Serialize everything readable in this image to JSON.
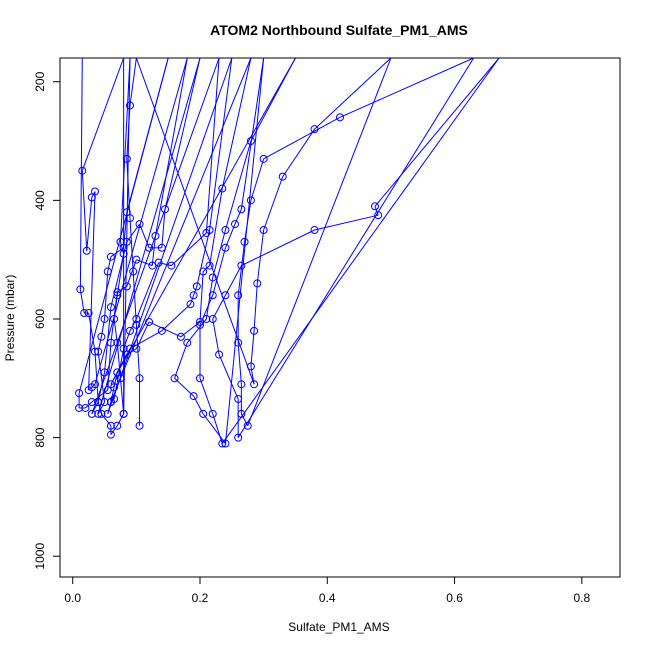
{
  "chart_data": {
    "type": "line",
    "title": "ATOM2 Northbound Sulfate_PM1_AMS",
    "xlabel": "Sulfate_PM1_AMS",
    "ylabel": "Pressure (mbar)",
    "xlim": [
      -0.02,
      0.86
    ],
    "ylim": [
      1035,
      160
    ],
    "y_inverted": true,
    "x_ticks": [
      "0.0",
      "0.2",
      "0.4",
      "0.6",
      "0.8"
    ],
    "y_ticks": [
      "200",
      "400",
      "600",
      "800",
      "1000"
    ],
    "grid": false,
    "series": [
      {
        "color": "#0000ff",
        "marker": "open-circle",
        "points": [
          [
            0.015,
            160
          ],
          [
            0.012,
            550
          ],
          [
            0.018,
            590
          ],
          [
            0.025,
            590
          ],
          [
            0.035,
            655
          ],
          [
            0.04,
            740
          ],
          [
            0.045,
            760
          ],
          [
            0.06,
            780
          ],
          [
            0.06,
            795
          ],
          [
            0.07,
            780
          ],
          [
            0.08,
            760
          ],
          [
            0.09,
            160
          ],
          [
            0.075,
            470
          ],
          [
            0.08,
            490
          ],
          [
            0.07,
            560
          ],
          [
            0.065,
            600
          ],
          [
            0.07,
            640
          ],
          [
            0.075,
            700
          ],
          [
            0.08,
            760
          ],
          [
            0.08,
            160
          ],
          [
            0.015,
            350
          ],
          [
            0.022,
            485
          ],
          [
            0.03,
            395
          ],
          [
            0.035,
            385
          ],
          [
            0.025,
            720
          ],
          [
            0.03,
            715
          ],
          [
            0.035,
            710
          ],
          [
            0.18,
            160
          ],
          [
            0.13,
            460
          ],
          [
            0.125,
            510
          ],
          [
            0.1,
            500
          ],
          [
            0.085,
            545
          ],
          [
            0.07,
            555
          ],
          [
            0.06,
            640
          ],
          [
            0.055,
            720
          ],
          [
            0.03,
            740
          ],
          [
            0.02,
            750
          ],
          [
            0.01,
            750
          ],
          [
            0.01,
            725
          ],
          [
            0.15,
            160
          ],
          [
            0.085,
            420
          ],
          [
            0.08,
            480
          ],
          [
            0.06,
            495
          ],
          [
            0.055,
            520
          ],
          [
            0.05,
            600
          ],
          [
            0.045,
            630
          ],
          [
            0.04,
            655
          ],
          [
            0.05,
            740
          ],
          [
            0.04,
            760
          ],
          [
            0.2,
            160
          ],
          [
            0.145,
            415
          ],
          [
            0.14,
            480
          ],
          [
            0.12,
            480
          ],
          [
            0.105,
            440
          ],
          [
            0.085,
            470
          ],
          [
            0.06,
            580
          ],
          [
            0.05,
            690
          ],
          [
            0.04,
            740
          ],
          [
            0.03,
            760
          ],
          [
            0.23,
            160
          ],
          [
            0.21,
            455
          ],
          [
            0.155,
            510
          ],
          [
            0.135,
            505
          ],
          [
            0.1,
            600
          ],
          [
            0.09,
            620
          ],
          [
            0.08,
            650
          ],
          [
            0.065,
            735
          ],
          [
            0.06,
            740
          ],
          [
            0.055,
            760
          ],
          [
            0.25,
            160
          ],
          [
            0.215,
            450
          ],
          [
            0.195,
            545
          ],
          [
            0.19,
            560
          ],
          [
            0.185,
            575
          ],
          [
            0.14,
            620
          ],
          [
            0.09,
            650
          ],
          [
            0.07,
            690
          ],
          [
            0.065,
            715
          ],
          [
            0.06,
            740
          ],
          [
            0.28,
            160
          ],
          [
            0.235,
            380
          ],
          [
            0.215,
            510
          ],
          [
            0.205,
            520
          ],
          [
            0.2,
            605
          ],
          [
            0.17,
            630
          ],
          [
            0.12,
            605
          ],
          [
            0.1,
            650
          ],
          [
            0.085,
            660
          ],
          [
            0.06,
            710
          ],
          [
            0.35,
            160
          ],
          [
            0.28,
            300
          ],
          [
            0.24,
            450
          ],
          [
            0.22,
            530
          ],
          [
            0.21,
            600
          ],
          [
            0.18,
            640
          ],
          [
            0.16,
            700
          ],
          [
            0.19,
            730
          ],
          [
            0.205,
            760
          ],
          [
            0.24,
            810
          ],
          [
            0.3,
            160
          ],
          [
            0.265,
            415
          ],
          [
            0.255,
            440
          ],
          [
            0.24,
            480
          ],
          [
            0.22,
            560
          ],
          [
            0.2,
            610
          ],
          [
            0.2,
            700
          ],
          [
            0.22,
            760
          ],
          [
            0.235,
            810
          ],
          [
            0.67,
            160
          ],
          [
            0.475,
            410
          ],
          [
            0.48,
            425
          ],
          [
            0.38,
            450
          ],
          [
            0.265,
            510
          ],
          [
            0.24,
            560
          ],
          [
            0.22,
            600
          ],
          [
            0.23,
            660
          ],
          [
            0.26,
            735
          ],
          [
            0.26,
            800
          ],
          [
            0.63,
            160
          ],
          [
            0.42,
            260
          ],
          [
            0.3,
            330
          ],
          [
            0.28,
            400
          ],
          [
            0.27,
            470
          ],
          [
            0.26,
            560
          ],
          [
            0.26,
            640
          ],
          [
            0.265,
            710
          ],
          [
            0.265,
            760
          ],
          [
            0.275,
            780
          ],
          [
            0.5,
            160
          ],
          [
            0.38,
            280
          ],
          [
            0.33,
            360
          ],
          [
            0.3,
            450
          ],
          [
            0.29,
            540
          ],
          [
            0.285,
            620
          ],
          [
            0.28,
            680
          ],
          [
            0.285,
            710
          ],
          [
            0.1,
            160
          ],
          [
            0.09,
            240
          ],
          [
            0.085,
            330
          ],
          [
            0.09,
            430
          ],
          [
            0.095,
            520
          ],
          [
            0.1,
            610
          ],
          [
            0.105,
            700
          ],
          [
            0.105,
            780
          ]
        ]
      }
    ]
  }
}
